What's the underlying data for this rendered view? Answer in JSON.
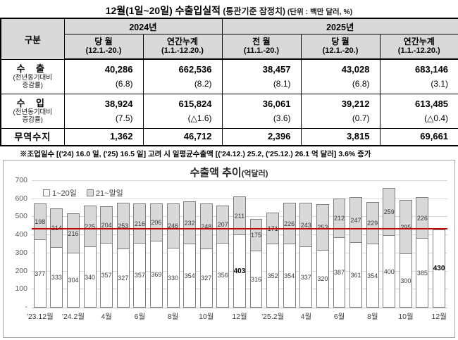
{
  "title": {
    "main": "12월(1일~20일) 수출입실적",
    "sub": " (통관기준 잠정치)",
    "unit": "  (단위 : 백만 달러, %)"
  },
  "table": {
    "corner": "구분",
    "groups": [
      {
        "label": "2024년"
      },
      {
        "label": "2025년"
      }
    ],
    "columns": [
      {
        "title": "당 월",
        "period": "(12.1.-20.)"
      },
      {
        "title": "연간누계",
        "period": "(1.1.-12.20.)"
      },
      {
        "title": "전 월",
        "period": "(11.1.-20.)"
      },
      {
        "title": "당 월",
        "period": "(12.1.-20.)"
      },
      {
        "title": "연간누계",
        "period": "(1.1.-12.20.)"
      }
    ],
    "rows": [
      {
        "label": "수 출",
        "sub1": "(전년동기대비",
        "sub2": "증감률)",
        "values": [
          "40,286",
          "662,536",
          "38,457",
          "43,028",
          "683,146"
        ],
        "rates": [
          "(6.8)",
          "(8.2)",
          "(8.1)",
          "(6.8)",
          "(3.1)"
        ]
      },
      {
        "label": "수 입",
        "sub1": "(전년동기대비",
        "sub2": "증감률)",
        "values": [
          "38,924",
          "615,824",
          "36,061",
          "39,212",
          "613,485"
        ],
        "rates": [
          "(7.5)",
          "(△1.6)",
          "(3.6)",
          "(0.7)",
          "(△0.4)"
        ]
      },
      {
        "label": "무역수지",
        "values": [
          "1,362",
          "46,712",
          "2,396",
          "3,815",
          "69,661"
        ]
      }
    ]
  },
  "footnote": "※조업일수 [('24) 16.0 일, ('25) 16.5 일] 고려 시 일평균수출액 [('24.12.) 25.2, ('25.12.) 26.1 억 달러] 3.6% 증가",
  "chart_data": {
    "type": "bar",
    "stacked": true,
    "title": "수출액 추이",
    "title_unit": "(억달러)",
    "ylim": [
      0,
      700
    ],
    "ytick_step": 100,
    "ytick_labels": [
      "-",
      "100",
      "200",
      "300",
      "400",
      "500",
      "600",
      "700"
    ],
    "grid": true,
    "legend_position": "top-left",
    "reference_line": {
      "value": 430,
      "color": "#c00000"
    },
    "x_tick_labels": [
      "'23.12월",
      "'24.2월",
      "4월",
      "6월",
      "8월",
      "10월",
      "12월",
      "'25.2월",
      "4월",
      "6월",
      "8월",
      "10월",
      "12월"
    ],
    "x_tick_every": 2,
    "bar_colors": {
      "segment1": "#ffffff",
      "segment2": "#d9d9d9",
      "border": "#7f7f7f"
    },
    "series": [
      {
        "name": "1~20일",
        "color": "#ffffff",
        "values": [
          377,
          333,
          304,
          340,
          357,
          327,
          357,
          369,
          330,
          354,
          327,
          356,
          403,
          316,
          352,
          354,
          337,
          320,
          387,
          361,
          354,
          400,
          300,
          385,
          430
        ]
      },
      {
        "name": "21~말일",
        "color": "#d9d9d9",
        "values": [
          198,
          214,
          216,
          225,
          204,
          253,
          216,
          206,
          246,
          232,
          248,
          207,
          211,
          175,
          171,
          226,
          243,
          253,
          212,
          247,
          229,
          259,
          295,
          226,
          null
        ]
      }
    ],
    "bold_value_indices": [
      12,
      24
    ]
  }
}
